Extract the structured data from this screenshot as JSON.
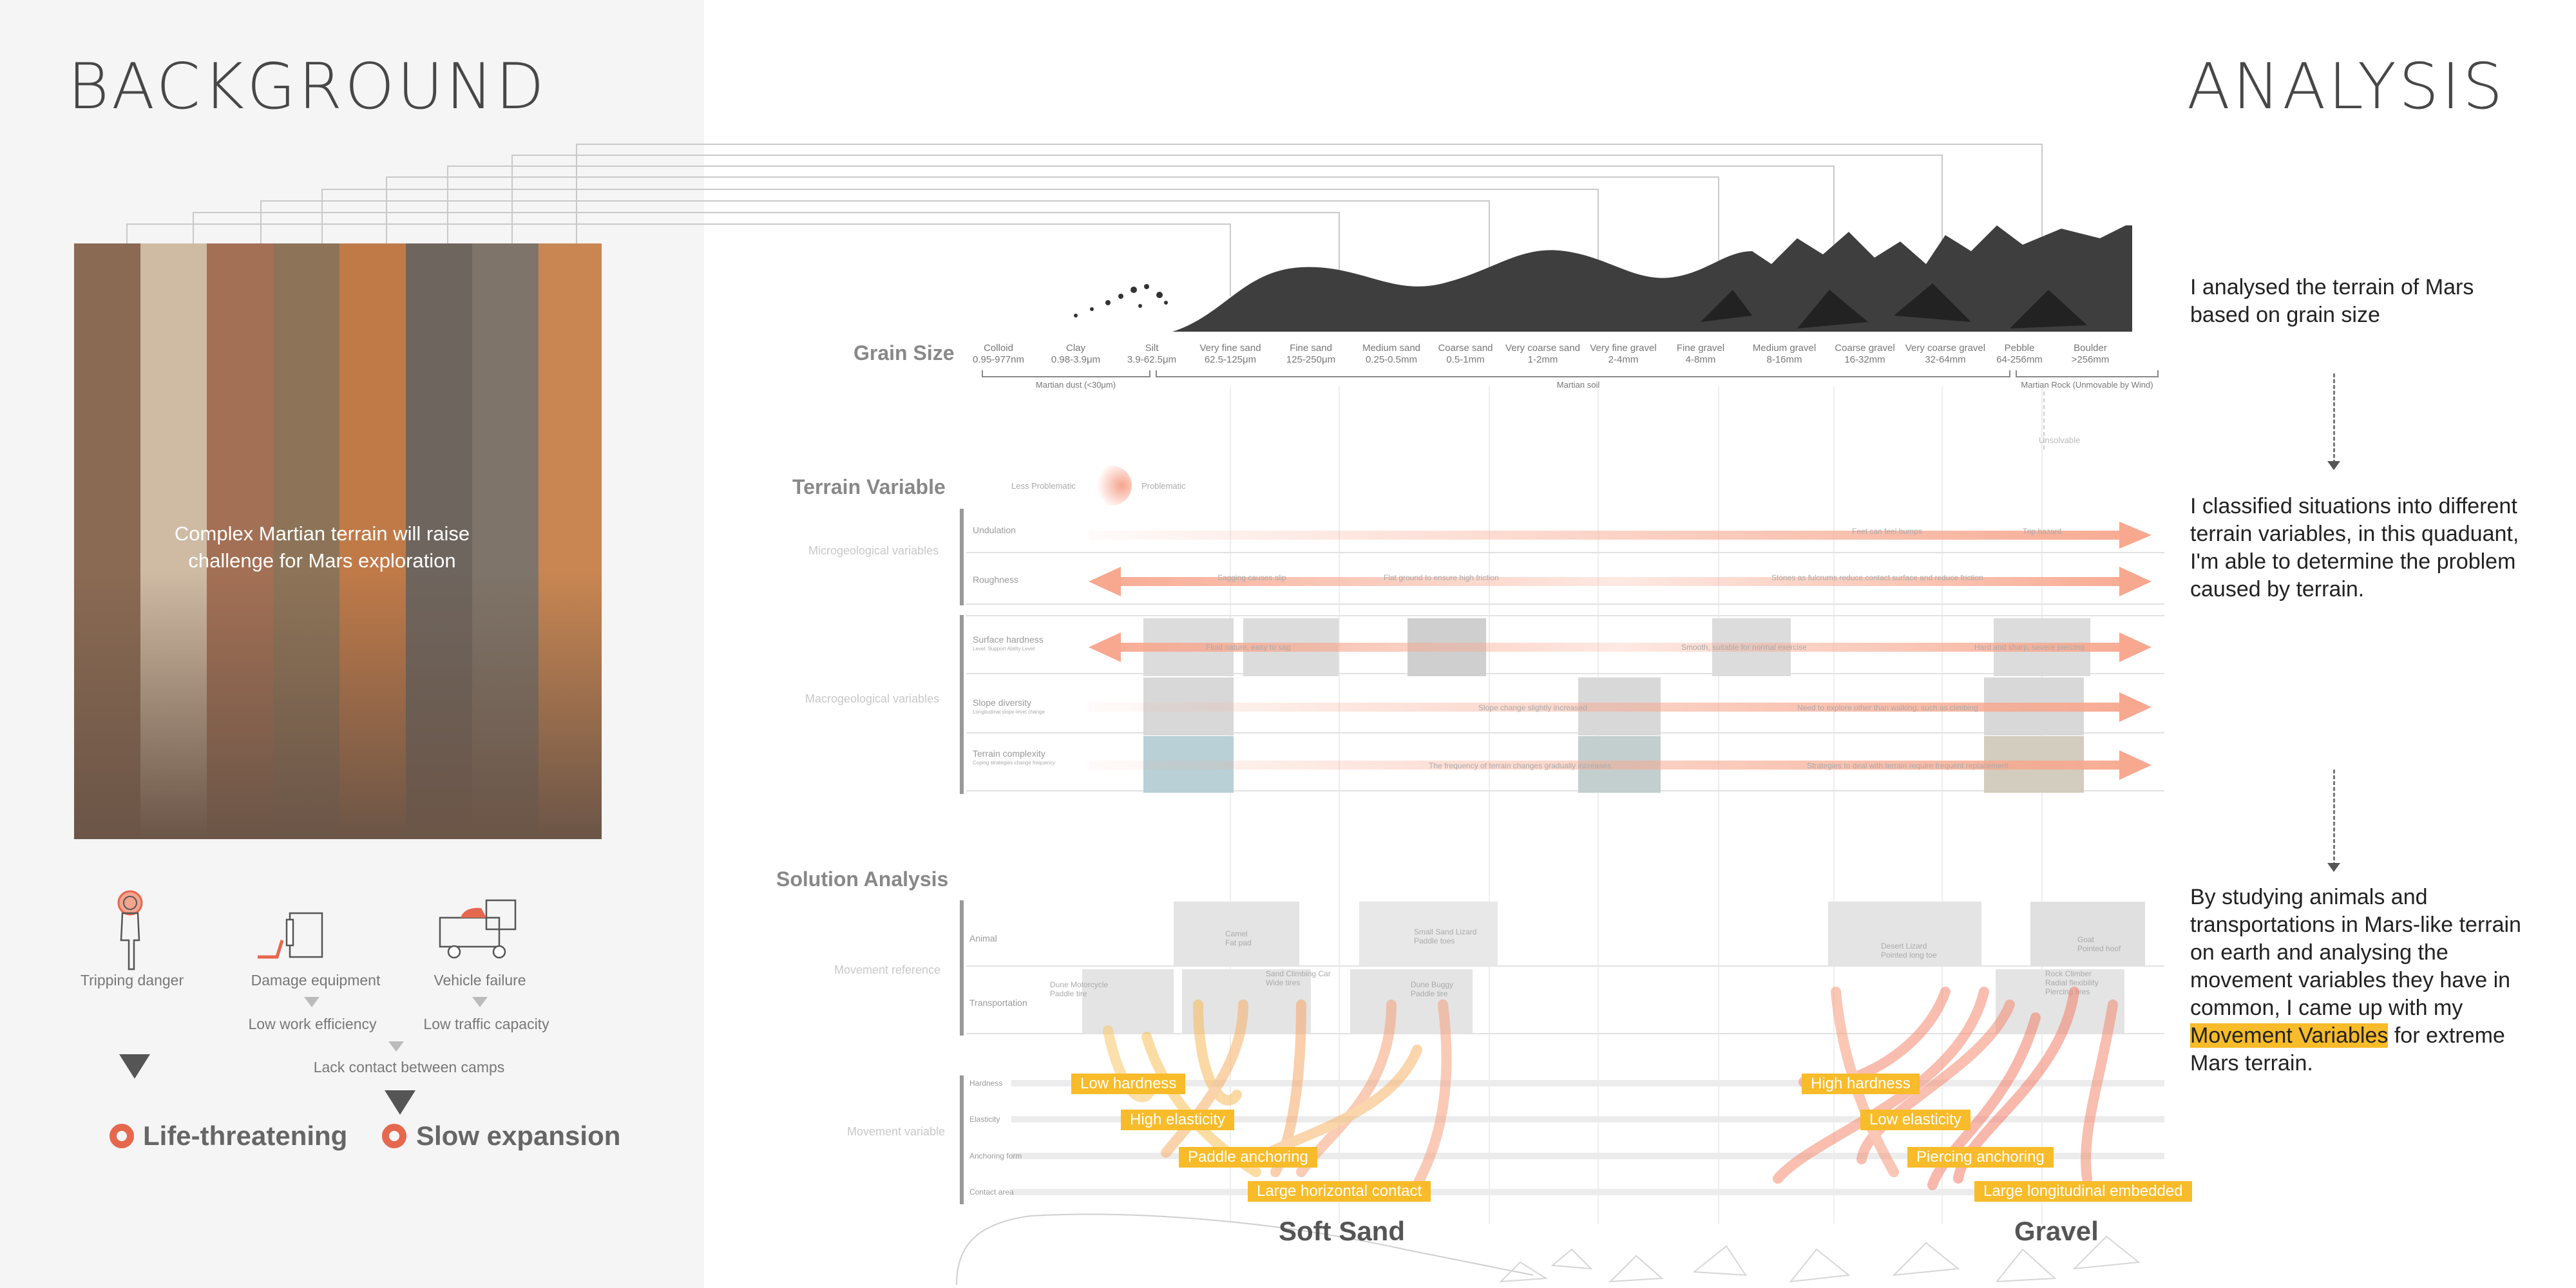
{
  "background": {
    "title": "BACKGROUND",
    "strip_colors": [
      "#8a6a53",
      "#cfbba4",
      "#a37055",
      "#8d7458",
      "#c07a48",
      "#6e655e",
      "#7f7469",
      "#c98652"
    ],
    "caption": "Complex Martian terrain will raise challenge for Mars exploration",
    "problems": [
      {
        "label": "Tripping danger",
        "icon": "person-icon"
      },
      {
        "label": "Damage equipment",
        "icon": "equipment-icon"
      },
      {
        "label": "Vehicle failure",
        "icon": "vehicle-icon"
      }
    ],
    "effects": [
      "Low work efficiency",
      "Low traffic capacity"
    ],
    "combined_effect": "Lack contact between camps",
    "outcomes": [
      "Life-threatening",
      "Slow expansion"
    ],
    "accent": "#e5684e"
  },
  "analysis": {
    "title": "ANALYSIS",
    "grain": {
      "title": "Grain Size",
      "sizes": [
        {
          "name": "Colloid",
          "range": "0.95-977nm"
        },
        {
          "name": "Clay",
          "range": "0.98-3.9μm"
        },
        {
          "name": "Silt",
          "range": "3.9-62.5μm"
        },
        {
          "name": "Very fine sand",
          "range": "62.5-125μm"
        },
        {
          "name": "Fine sand",
          "range": "125-250μm"
        },
        {
          "name": "Medium sand",
          "range": "0.25-0.5mm"
        },
        {
          "name": "Coarse sand",
          "range": "0.5-1mm"
        },
        {
          "name": "Very coarse sand",
          "range": "1-2mm"
        },
        {
          "name": "Very fine gravel",
          "range": "2-4mm"
        },
        {
          "name": "Fine gravel",
          "range": "4-8mm"
        },
        {
          "name": "Medium gravel",
          "range": "8-16mm"
        },
        {
          "name": "Coarse gravel",
          "range": "16-32mm"
        },
        {
          "name": "Very coarse gravel",
          "range": "32-64mm"
        },
        {
          "name": "Pebble",
          "range": "64-256mm"
        },
        {
          "name": "Boulder",
          "range": ">256mm"
        }
      ],
      "groups": [
        "Martian dust (<30μm)",
        "Martian soil",
        "Martian Rock (Unmovable by Wind)"
      ],
      "unsolvable": "Unsolvable"
    },
    "terrain": {
      "title": "Terrain Variable",
      "legend_less": "Less Problematic",
      "legend_more": "Problematic",
      "micro_label": "Microgeological variables",
      "macro_label": "Macrogeological variables",
      "rows": {
        "undulation": {
          "name": "Undulation",
          "notes": [
            "Feet can feel bumps",
            "Trip hazard"
          ]
        },
        "roughness": {
          "name": "Roughness",
          "notes": [
            "Sagging causes slip",
            "Flat ground to ensure high friction",
            "Stones as fulcrums reduce contact surface and reduce friction"
          ]
        },
        "hardness": {
          "name": "Surface hardness",
          "sub": "Level: Support Ability Level",
          "notes": [
            "Fluid nature, easy to sag",
            "Smooth, suitable for normal exercise",
            "Hard and sharp, severe piercing"
          ]
        },
        "slope": {
          "name": "Slope diversity",
          "sub": "Longitudinal slope-level change",
          "notes": [
            "Slope change slightly increased",
            "Need to explore other than walking, such as climbing"
          ]
        },
        "complexity": {
          "name": "Terrain complexity",
          "sub": "Coping strategies change frequency",
          "notes": [
            "The frequency of terrain changes gradually increases",
            "Strategies to deal with terrain require frequent replacement"
          ]
        }
      },
      "arrow_color": "#f7a88f"
    },
    "solution": {
      "title": "Solution Analysis",
      "movement_reference": "Movement reference",
      "animal_row": "Animal",
      "transport_row": "Transportation",
      "movement_variable": "Movement variable",
      "variables": [
        "Hardness",
        "Elasticity",
        "Anchoring form",
        "Contact area"
      ],
      "refs": [
        {
          "label": "Camel\nFat pad"
        },
        {
          "label": "Sand Climbing Car\nWide tires"
        },
        {
          "label": "Small Sand Lizard\nPaddle toes"
        },
        {
          "label": "Dune Motorcycle\nPaddle tire"
        },
        {
          "label": "Dune Buggy\nPaddle tire"
        },
        {
          "label": "Desert Lizard\nPointed long toe"
        },
        {
          "label": "Goat\nPointed hoof"
        },
        {
          "label": "Rock Climber\nRadial flexibility\nPiercing tires"
        }
      ],
      "soft_sand": {
        "name": "Soft Sand",
        "labels": [
          "Low hardness",
          "High elasticity",
          "Paddle anchoring",
          "Large horizontal contact"
        ]
      },
      "gravel": {
        "name": "Gravel",
        "labels": [
          "High hardness",
          "Low elasticity",
          "Piercing anchoring",
          "Large longitudinal embedded"
        ]
      },
      "highlight_color": "#f8bb29"
    },
    "notes": {
      "grain": "I analysed the terrain of Mars based on grain size",
      "terrain": "I classified situations into different terrain variables, in this quaduant, I'm able to determine the problem caused by terrain.",
      "solution_before": "By studying animals and transportations in Mars-like terrain on earth and analysing the movement variables they have in common, I came up with my",
      "solution_highlight": "Movement Variables",
      "solution_after": "for extreme Mars terrain."
    }
  }
}
